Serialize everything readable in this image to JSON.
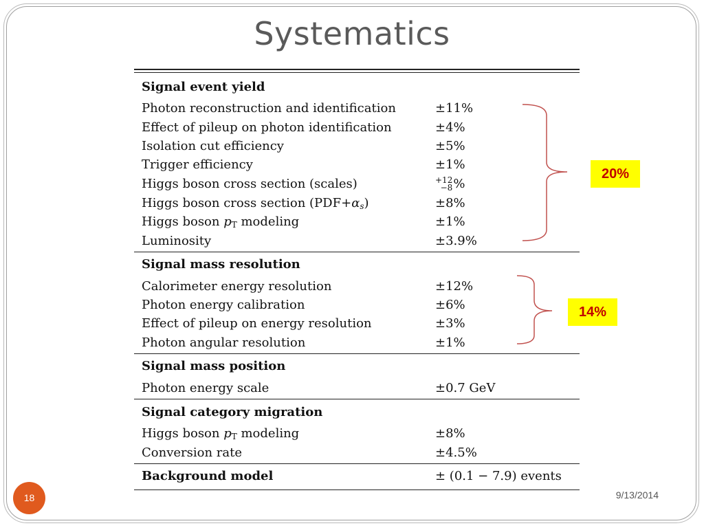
{
  "title": "Systematics",
  "page_number": "18",
  "date": "9/13/2014",
  "badges": {
    "group1": "20%",
    "group2": "14%"
  },
  "colors": {
    "accent_orange": "#e05a1e",
    "brace_red": "#c0504d",
    "badge_bg": "#ffff00",
    "badge_text": "#c00000"
  },
  "sections": [
    {
      "heading": "Signal event yield",
      "rows": [
        {
          "label": "Photon reconstruction and identification",
          "value": "±11%"
        },
        {
          "label": "Effect of pileup on photon identification",
          "value": "±4%"
        },
        {
          "label": "Isolation cut efficiency",
          "value": "±5%"
        },
        {
          "label": "Trigger efficiency",
          "value": "±1%"
        },
        {
          "label": "Higgs boson cross section (scales)",
          "value_up": "+12",
          "value_down": "−8",
          "value_unit": "%"
        },
        {
          "label_pre": "Higgs boson cross section (PDF+",
          "label_sym": "α",
          "label_sub": "s",
          "label_post": ")",
          "value": "±8%"
        },
        {
          "label_pre": "Higgs boson ",
          "label_sym": "p",
          "label_sub": "T",
          "label_post": " modeling",
          "value": "±1%"
        },
        {
          "label": "Luminosity",
          "value": "±3.9%"
        }
      ]
    },
    {
      "heading": "Signal mass resolution",
      "rows": [
        {
          "label": "Calorimeter energy resolution",
          "value": "±12%"
        },
        {
          "label": "Photon energy calibration",
          "value": "±6%"
        },
        {
          "label": "Effect of pileup on energy resolution",
          "value": "±3%"
        },
        {
          "label": "Photon angular resolution",
          "value": "±1%"
        }
      ]
    },
    {
      "heading": "Signal mass position",
      "rows": [
        {
          "label": "Photon energy scale",
          "value": "±0.7 GeV"
        }
      ]
    },
    {
      "heading": "Signal category migration",
      "rows": [
        {
          "label_pre": "Higgs boson ",
          "label_sym": "p",
          "label_sub": "T",
          "label_post": " modeling",
          "value": "±8%"
        },
        {
          "label": "Conversion rate",
          "value": "±4.5%"
        }
      ]
    },
    {
      "heading": "Background model",
      "heading_value": "± (0.1 − 7.9) events",
      "rows": []
    }
  ]
}
